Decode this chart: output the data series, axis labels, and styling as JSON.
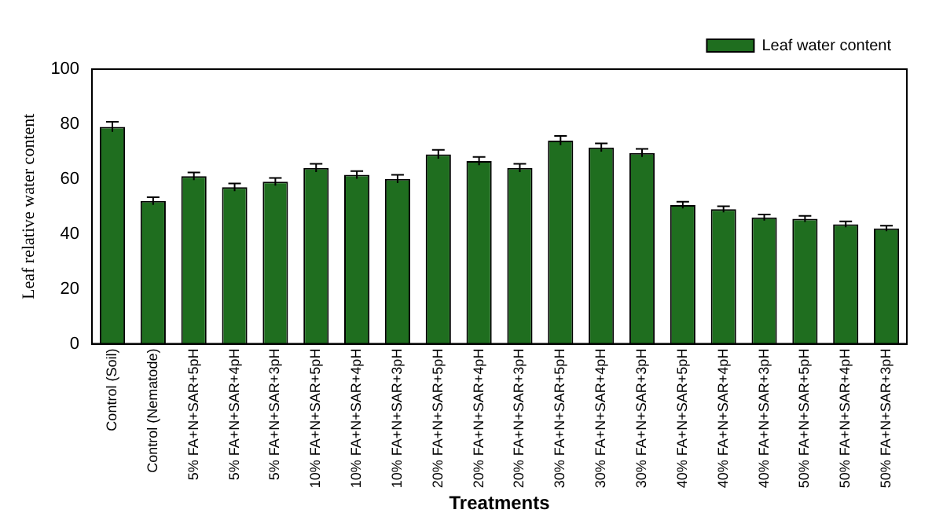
{
  "chart_data": {
    "type": "bar",
    "xlabel": "Treatments",
    "ylabel": "Leaf relative water content",
    "categories": [
      "Control (Soil)",
      "Control (Nematode)",
      "5% FA+N+SAR+5pH",
      "5% FA+N+SAR+4pH",
      "5% FA+N+SAR+3pH",
      "10% FA+N+SAR+5pH",
      "10% FA+N+SAR+4pH",
      "10% FA+N+SAR+3pH",
      "20% FA+N+SAR+5pH",
      "20% FA+N+SAR+4pH",
      "20% FA+N+SAR+3pH",
      "30% FA+N+SAR+5pH",
      "30% FA+N+SAR+4pH",
      "30% FA+N+SAR+3pH",
      "40% FA+N+SAR+5pH",
      "40% FA+N+SAR+4pH",
      "40% FA+N+SAR+3pH",
      "50% FA+N+SAR+5pH",
      "50% FA+N+SAR+4pH",
      "50% FA+N+SAR+3pH"
    ],
    "series": [
      {
        "name": "Leaf water content",
        "color": "#1f6e1f",
        "values": [
          79,
          52,
          61,
          57,
          59,
          64,
          61.5,
          60,
          69,
          66.5,
          64,
          74,
          71.5,
          69.5,
          50.5,
          49,
          46,
          45.5,
          43.5,
          42
        ],
        "errors": [
          1.8,
          1.4,
          1.4,
          1.4,
          1.4,
          1.5,
          1.4,
          1.5,
          1.6,
          1.5,
          1.5,
          1.7,
          1.5,
          1.5,
          1.2,
          1.1,
          1.1,
          1.1,
          1.1,
          1
        ]
      }
    ],
    "ylim": [
      0,
      100
    ],
    "yticks": [
      0,
      20,
      40,
      60,
      80,
      100
    ],
    "grid": false,
    "legend": "top right"
  }
}
